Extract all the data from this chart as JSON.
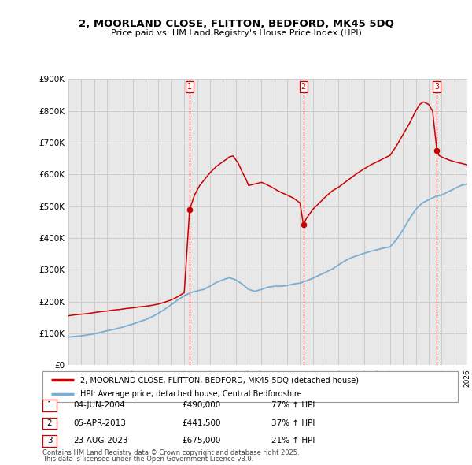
{
  "title_line1": "2, MOORLAND CLOSE, FLITTON, BEDFORD, MK45 5DQ",
  "title_line2": "Price paid vs. HM Land Registry's House Price Index (HPI)",
  "background_color": "#ffffff",
  "plot_bg_color": "#e8e8e8",
  "red_line_label": "2, MOORLAND CLOSE, FLITTON, BEDFORD, MK45 5DQ (detached house)",
  "blue_line_label": "HPI: Average price, detached house, Central Bedfordshire",
  "transactions": [
    {
      "label": "1",
      "date": "04-JUN-2004",
      "price": 490000,
      "hpi_pct": "77% ↑ HPI",
      "x": 2004.42
    },
    {
      "label": "2",
      "date": "05-APR-2013",
      "price": 441500,
      "hpi_pct": "37% ↑ HPI",
      "x": 2013.26
    },
    {
      "label": "3",
      "date": "23-AUG-2023",
      "price": 675000,
      "hpi_pct": "21% ↑ HPI",
      "x": 2023.64
    }
  ],
  "footnote_line1": "Contains HM Land Registry data © Crown copyright and database right 2025.",
  "footnote_line2": "This data is licensed under the Open Government Licence v3.0.",
  "red_color": "#cc0000",
  "blue_color": "#7aadd4",
  "vline_color": "#cc0000",
  "grid_color": "#cccccc",
  "xmin": 1995,
  "xmax": 2026,
  "ymin": 0,
  "ymax": 900000,
  "hpi_x": [
    1995.0,
    1995.5,
    1996.0,
    1996.5,
    1997.0,
    1997.5,
    1998.0,
    1998.5,
    1999.0,
    1999.5,
    2000.0,
    2000.5,
    2001.0,
    2001.5,
    2002.0,
    2002.5,
    2003.0,
    2003.5,
    2004.0,
    2004.5,
    2005.0,
    2005.5,
    2006.0,
    2006.5,
    2007.0,
    2007.5,
    2008.0,
    2008.5,
    2009.0,
    2009.5,
    2010.0,
    2010.5,
    2011.0,
    2011.5,
    2012.0,
    2012.5,
    2013.0,
    2013.5,
    2014.0,
    2014.5,
    2015.0,
    2015.5,
    2016.0,
    2016.5,
    2017.0,
    2017.5,
    2018.0,
    2018.5,
    2019.0,
    2019.5,
    2020.0,
    2020.5,
    2021.0,
    2021.5,
    2022.0,
    2022.5,
    2023.0,
    2023.5,
    2024.0,
    2024.5,
    2025.0,
    2025.5,
    2026.0
  ],
  "hpi_y": [
    88000,
    90000,
    92000,
    95000,
    98000,
    103000,
    108000,
    112000,
    117000,
    123000,
    129000,
    136000,
    143000,
    152000,
    163000,
    176000,
    190000,
    205000,
    218000,
    228000,
    233000,
    238000,
    248000,
    260000,
    268000,
    275000,
    268000,
    255000,
    238000,
    232000,
    238000,
    245000,
    248000,
    248000,
    250000,
    255000,
    258000,
    265000,
    273000,
    283000,
    292000,
    302000,
    315000,
    328000,
    338000,
    345000,
    352000,
    358000,
    363000,
    368000,
    372000,
    395000,
    425000,
    460000,
    490000,
    510000,
    520000,
    530000,
    535000,
    545000,
    555000,
    565000,
    570000
  ],
  "red_x": [
    1995.0,
    1995.5,
    1996.0,
    1996.5,
    1997.0,
    1997.5,
    1998.0,
    1998.5,
    1999.0,
    1999.5,
    2000.0,
    2000.5,
    2001.0,
    2001.5,
    2002.0,
    2002.5,
    2003.0,
    2003.5,
    2004.0,
    2004.42,
    2004.8,
    2005.2,
    2005.5,
    2006.0,
    2006.5,
    2007.0,
    2007.3,
    2007.5,
    2007.8,
    2008.2,
    2008.5,
    2008.8,
    2009.0,
    2009.3,
    2009.7,
    2010.0,
    2010.3,
    2010.7,
    2011.0,
    2011.3,
    2011.7,
    2012.0,
    2012.5,
    2013.0,
    2013.26,
    2013.5,
    2014.0,
    2014.5,
    2015.0,
    2015.5,
    2016.0,
    2016.5,
    2017.0,
    2017.5,
    2018.0,
    2018.5,
    2019.0,
    2019.5,
    2020.0,
    2020.5,
    2021.0,
    2021.5,
    2022.0,
    2022.3,
    2022.6,
    2023.0,
    2023.3,
    2023.64,
    2023.8,
    2024.0,
    2024.3,
    2024.6,
    2025.0,
    2025.5,
    2026.0
  ],
  "red_y": [
    155000,
    158000,
    160000,
    162000,
    165000,
    168000,
    170000,
    173000,
    175000,
    178000,
    180000,
    183000,
    185000,
    188000,
    192000,
    198000,
    205000,
    215000,
    228000,
    490000,
    535000,
    565000,
    580000,
    605000,
    625000,
    640000,
    648000,
    655000,
    658000,
    635000,
    608000,
    585000,
    565000,
    568000,
    572000,
    575000,
    570000,
    562000,
    555000,
    548000,
    540000,
    535000,
    525000,
    510000,
    441500,
    462000,
    490000,
    510000,
    530000,
    548000,
    560000,
    575000,
    590000,
    605000,
    618000,
    630000,
    640000,
    650000,
    660000,
    690000,
    725000,
    760000,
    800000,
    820000,
    828000,
    820000,
    800000,
    675000,
    660000,
    655000,
    650000,
    645000,
    640000,
    635000,
    630000
  ]
}
